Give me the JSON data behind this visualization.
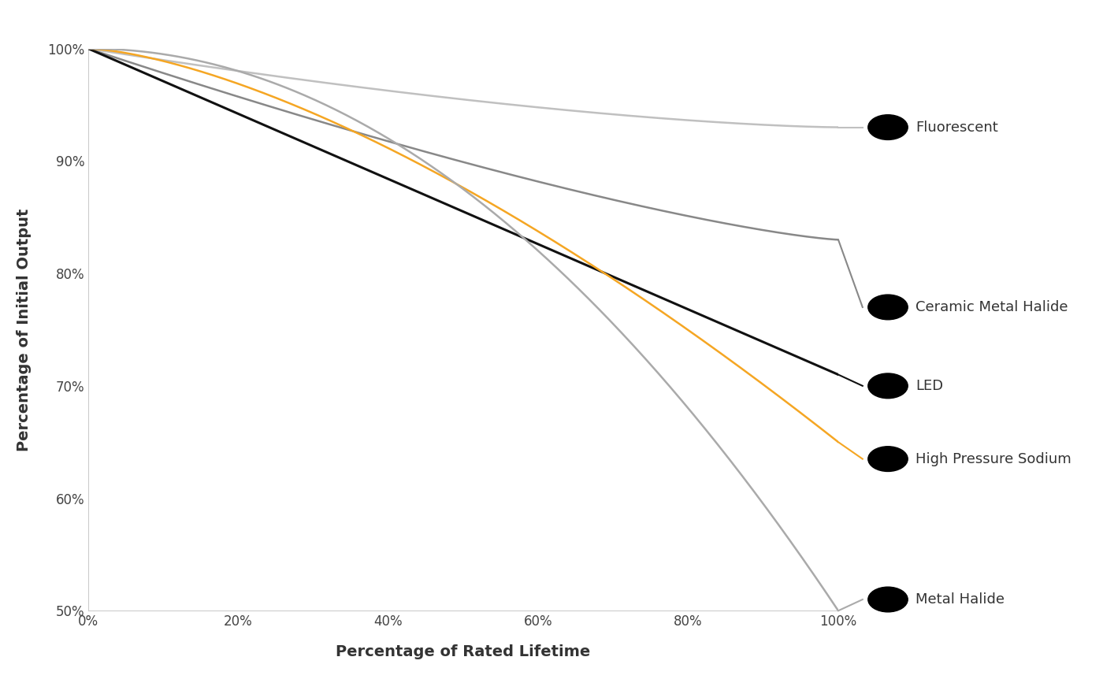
{
  "xlabel": "Percentage of Rated Lifetime",
  "ylabel": "Percentage of Initial Output",
  "xlim": [
    0,
    1
  ],
  "ylim": [
    0.5,
    1.0
  ],
  "yticks": [
    0.5,
    0.6,
    0.7,
    0.8,
    0.9,
    1.0
  ],
  "xticks": [
    0.0,
    0.2,
    0.4,
    0.6,
    0.8,
    1.0
  ],
  "curves": [
    {
      "name": "Fluorescent",
      "color": "#c0c0c0",
      "linewidth": 1.8,
      "end_val": 0.93
    },
    {
      "name": "Ceramic Metal Halide",
      "color": "#888888",
      "linewidth": 1.8,
      "end_val": 0.83
    },
    {
      "name": "LED",
      "color": "#111111",
      "linewidth": 2.2,
      "end_val": 0.71
    },
    {
      "name": "High Pressure Sodium",
      "color": "#f5a623",
      "linewidth": 1.8,
      "end_val": 0.65
    },
    {
      "name": "Metal Halide",
      "color": "#aaaaaa",
      "linewidth": 1.8,
      "end_val": 0.5
    }
  ],
  "legend_labels": [
    "Fluorescent",
    "Ceramic Metal Halide",
    "LED",
    "High Pressure Sodium",
    "Metal Halide"
  ],
  "legend_colors": [
    "#c0c0c0",
    "#888888",
    "#111111",
    "#f5a623",
    "#aaaaaa"
  ],
  "background_color": "#ffffff",
  "tick_fontsize": 12,
  "axis_label_fontsize": 14,
  "legend_fontsize": 13
}
